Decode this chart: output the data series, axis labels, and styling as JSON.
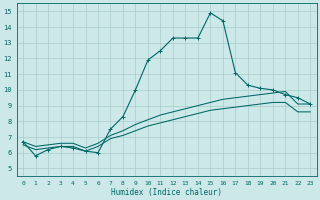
{
  "xlabel": "Humidex (Indice chaleur)",
  "ylabel": "",
  "bg_color": "#cce8e8",
  "grid_color": "#aacccc",
  "line_color": "#006666",
  "xlim": [
    -0.5,
    23.5
  ],
  "ylim": [
    4.5,
    15.5
  ],
  "xticks": [
    0,
    1,
    2,
    3,
    4,
    5,
    6,
    7,
    8,
    9,
    10,
    11,
    12,
    13,
    14,
    15,
    16,
    17,
    18,
    19,
    20,
    21,
    22,
    23
  ],
  "yticks": [
    5,
    6,
    7,
    8,
    9,
    10,
    11,
    12,
    13,
    14,
    15
  ],
  "series1": [
    6.7,
    5.8,
    6.2,
    6.4,
    6.3,
    6.1,
    6.0,
    7.5,
    8.3,
    10.0,
    11.9,
    12.5,
    13.3,
    13.3,
    13.3,
    14.9,
    14.4,
    11.1,
    10.3,
    10.1,
    10.0,
    9.7,
    9.5,
    9.1
  ],
  "series2": [
    6.7,
    6.4,
    6.5,
    6.6,
    6.6,
    6.3,
    6.6,
    7.1,
    7.4,
    7.8,
    8.1,
    8.4,
    8.6,
    8.8,
    9.0,
    9.2,
    9.4,
    9.5,
    9.6,
    9.7,
    9.8,
    9.9,
    9.1,
    9.1
  ],
  "series3": [
    6.5,
    6.2,
    6.3,
    6.4,
    6.4,
    6.1,
    6.4,
    6.9,
    7.1,
    7.4,
    7.7,
    7.9,
    8.1,
    8.3,
    8.5,
    8.7,
    8.8,
    8.9,
    9.0,
    9.1,
    9.2,
    9.2,
    8.6,
    8.6
  ]
}
